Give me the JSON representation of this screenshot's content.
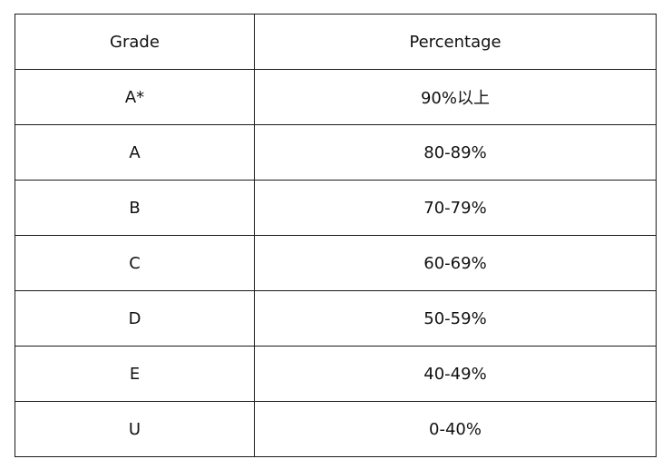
{
  "table": {
    "headers": {
      "grade": "Grade",
      "percentage": "Percentage"
    },
    "rows": [
      {
        "grade": "A*",
        "percentage": "90%以上"
      },
      {
        "grade": "A",
        "percentage": "80-89%"
      },
      {
        "grade": "B",
        "percentage": "70-79%"
      },
      {
        "grade": "C",
        "percentage": "60-69%"
      },
      {
        "grade": "D",
        "percentage": "50-59%"
      },
      {
        "grade": "E",
        "percentage": "40-49%"
      },
      {
        "grade": "U",
        "percentage": "0-40%"
      }
    ]
  }
}
